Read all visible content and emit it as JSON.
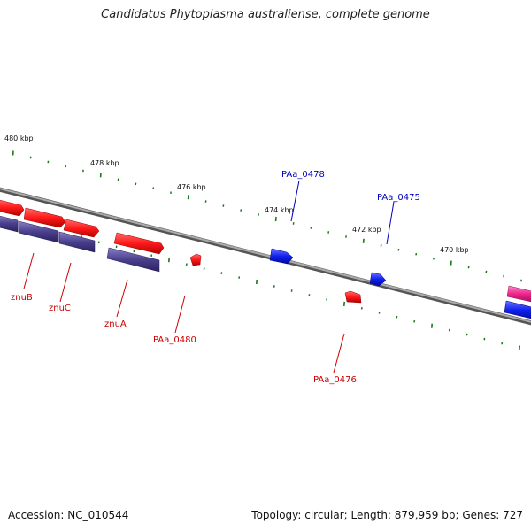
{
  "title": "Candidatus Phytoplasma australiense, complete genome",
  "footer": {
    "accession": "Accession: NC_010544",
    "summary": "Topology: circular; Length: 879,959 bp; Genes: 727"
  },
  "scale_labels": [
    "480 kbp",
    "478 kbp",
    "476 kbp",
    "474 kbp",
    "472 kbp",
    "470 kbp"
  ],
  "gene_labels": {
    "znuB": "znuB",
    "znuC": "znuC",
    "znuA": "znuA",
    "PAa_0480": "PAa_0480",
    "PAa_0476": "PAa_0476",
    "PAa_0478": "PAa_0478",
    "PAa_0475": "PAa_0475"
  },
  "colors": {
    "forward_gene": "#ff1a1a",
    "reverse_gene": "#4a3f8c",
    "blue_gene": "#1020ee",
    "pink_gene": "#ee2288",
    "backbone": "#808080",
    "tick": "#1a7a1a",
    "label_red": "#cc0000",
    "label_blue": "#0000bb"
  }
}
